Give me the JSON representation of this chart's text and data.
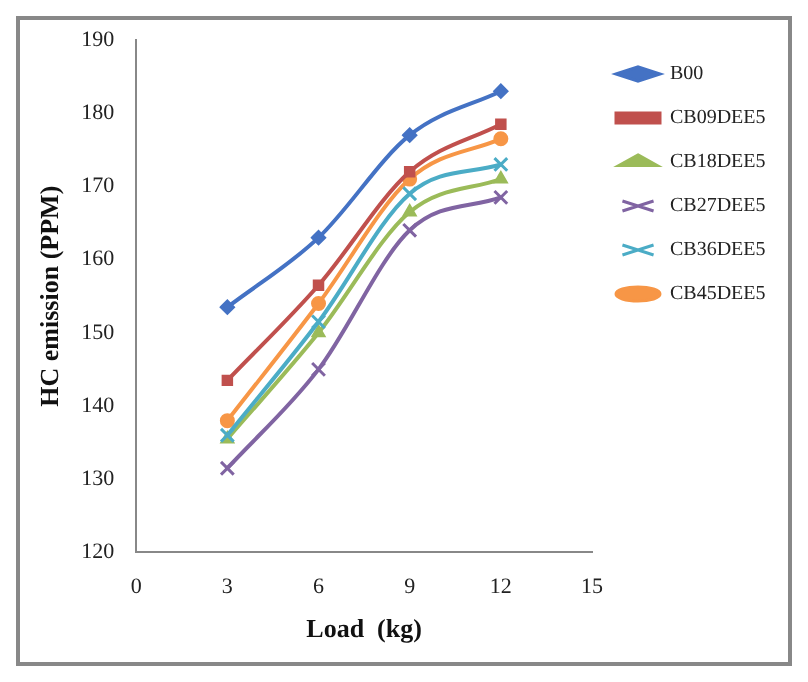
{
  "chart_data": {
    "type": "line",
    "xlabel": "Load  (kg)",
    "ylabel": "HC emission (PPM)",
    "x": [
      3,
      6,
      9,
      12
    ],
    "xlim": [
      0,
      15
    ],
    "xticks": [
      0,
      3,
      6,
      9,
      12,
      15
    ],
    "ylim": [
      120,
      190
    ],
    "yticks": [
      120,
      130,
      140,
      150,
      160,
      170,
      180,
      190
    ],
    "grid": false,
    "legend": "right",
    "line_style": "solid",
    "series": [
      {
        "name": "B00",
        "color": "#4472c4",
        "marker": "diamond",
        "values": [
          153.5,
          163,
          177,
          183
        ]
      },
      {
        "name": "CB09DEE5",
        "color": "#c0504d",
        "marker": "square",
        "values": [
          143.5,
          156.5,
          172,
          178.5
        ]
      },
      {
        "name": "CB18DEE5",
        "color": "#9bbb59",
        "marker": "triangle",
        "values": [
          135.5,
          150,
          166.5,
          171
        ]
      },
      {
        "name": "CB27DEE5",
        "color": "#8064a2",
        "marker": "cross",
        "values": [
          131.5,
          145,
          164,
          168.5
        ]
      },
      {
        "name": "CB36DEE5",
        "color": "#4bacc6",
        "marker": "cross",
        "values": [
          136,
          151.5,
          169,
          173
        ]
      },
      {
        "name": "CB45DEE5",
        "color": "#f79646",
        "marker": "circle",
        "values": [
          138,
          154,
          171,
          176.5
        ]
      }
    ]
  }
}
